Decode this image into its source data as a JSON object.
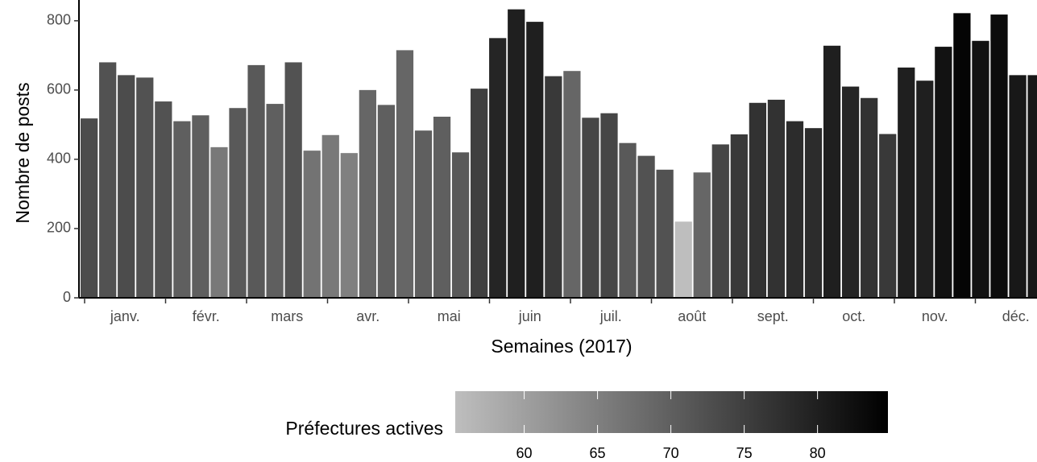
{
  "chart_data": {
    "type": "bar",
    "y_label": "Nombre de posts",
    "x_label": "Semaines (2017)",
    "months": [
      "janv.",
      "févr.",
      "mars",
      "avr.",
      "mai",
      "juin",
      "juil.",
      "août",
      "sept.",
      "oct.",
      "nov.",
      "déc."
    ],
    "values": [
      518,
      680,
      643,
      636,
      567,
      510,
      527,
      435,
      548,
      672,
      560,
      680,
      425,
      470,
      418,
      600,
      557,
      715,
      483,
      523,
      420,
      604,
      750,
      833,
      797,
      640,
      655,
      520,
      533,
      447,
      410,
      370,
      220,
      362,
      443,
      472,
      563,
      572,
      510,
      490,
      728,
      610,
      577,
      473,
      665,
      627,
      725,
      822,
      742,
      818,
      643,
      643
    ],
    "color_values": [
      73,
      72,
      73,
      72,
      72,
      70,
      70,
      66,
      71,
      71,
      70,
      72,
      67,
      66,
      65,
      69,
      70,
      69,
      70,
      70,
      71,
      75,
      79,
      80,
      80,
      76,
      69,
      74,
      74,
      71,
      72,
      72,
      55,
      69,
      74,
      76,
      77,
      77,
      78,
      78,
      80,
      79,
      77,
      76,
      80,
      80,
      82,
      84,
      82,
      83,
      81,
      81
    ],
    "ylim": [
      0,
      860
    ],
    "yticks": [
      0,
      200,
      400,
      600,
      800
    ],
    "legend_title": "Préfectures actives",
    "color_lim": [
      55.3,
      84.8
    ],
    "color_ticks": [
      60,
      65,
      70,
      75,
      80
    ],
    "color_low": "#bebebe",
    "color_high": "#000000"
  }
}
